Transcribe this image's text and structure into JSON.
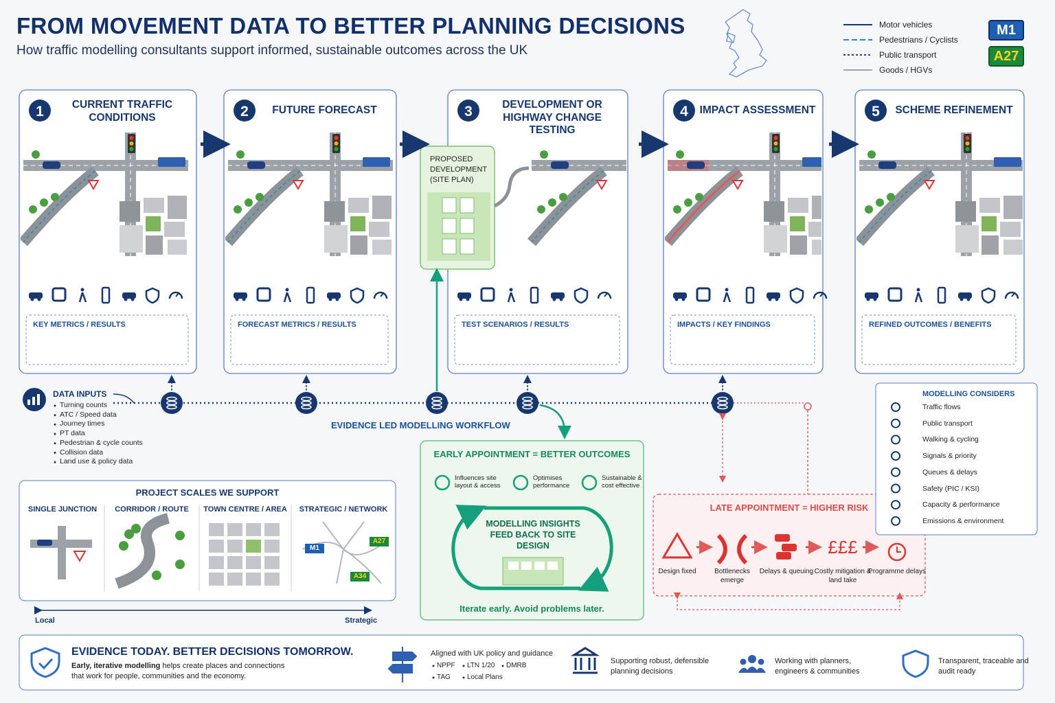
{
  "header": {
    "title": "FROM MOVEMENT DATA TO BETTER PLANNING DECISIONS",
    "subtitle": "How traffic modelling consultants support informed, sustainable outcomes across the UK"
  },
  "legend": {
    "items": [
      "Motor vehicles",
      "Pedestrians / Cyclists",
      "Public transport",
      "Goods / HGVs"
    ],
    "signs": [
      "M1",
      "A27"
    ]
  },
  "steps": [
    {
      "number": "1",
      "title": "CURRENT TRAFFIC CONDITIONS",
      "results": "KEY METRICS / RESULTS"
    },
    {
      "number": "2",
      "title": "FUTURE FORECAST",
      "results": "FORECAST METRICS / RESULTS"
    },
    {
      "number": "3",
      "title": "DEVELOPMENT OR HIGHWAY CHANGE TESTING",
      "results": "TEST SCENARIOS / RESULTS",
      "site_plan": "PROPOSED DEVELOPMENT (SITE PLAN)"
    },
    {
      "number": "4",
      "title": "IMPACT ASSESSMENT",
      "results": "IMPACTS / KEY FINDINGS"
    },
    {
      "number": "5",
      "title": "SCHEME REFINEMENT",
      "results": "REFINED OUTCOMES / BENEFITS"
    }
  ],
  "data_inputs": {
    "title": "DATA INPUTS",
    "items": [
      "Turning counts",
      "ATC / Speed data",
      "Journey times",
      "PT data",
      "Pedestrian & cycle counts",
      "Collision data",
      "Land use & policy data"
    ]
  },
  "workflow_label": "EVIDENCE LED MODELLING WORKFLOW",
  "project_scales": {
    "title": "PROJECT SCALES WE SUPPORT",
    "scales": [
      "SINGLE JUNCTION",
      "CORRIDOR / ROUTE",
      "TOWN CENTRE / AREA",
      "STRATEGIC / NETWORK"
    ],
    "signs": [
      "M1",
      "A27",
      "A34"
    ],
    "axis": [
      "Local",
      "Strategic"
    ]
  },
  "early_appointment": {
    "title": "EARLY APPOINTMENT = BETTER OUTCOMES",
    "benefits": [
      "Influences site layout & access",
      "Optimises performance",
      "Sustainable & cost effective"
    ],
    "loop_text": "MODELLING INSIGHTS FEED BACK TO SITE DESIGN",
    "tagline": "Iterate early. Avoid problems later."
  },
  "late_appointment": {
    "title": "LATE APPOINTMENT = HIGHER RISK",
    "cost_icon": "£££",
    "steps": [
      "Design fixed",
      "Bottlenecks emerge",
      "Delays & queuing",
      "Costly mitigation & land take",
      "Programme delays"
    ]
  },
  "modelling_considers": {
    "title": "MODELLING CONSIDERS",
    "items": [
      "Traffic flows",
      "Public transport",
      "Walking & cycling",
      "Signals & priority",
      "Queues & delays",
      "Safety (PIC / KSI)",
      "Capacity & performance",
      "Emissions & environment"
    ]
  },
  "footer": {
    "title": "EVIDENCE TODAY.  BETTER DECISIONS TOMORROW.",
    "text_lead": "Early, iterative modelling",
    "text": "helps create places and connections that work for people, communities and the economy.",
    "policy_title": "Aligned with UK policy and guidance",
    "policy_tags": [
      "NPPF",
      "LTN 1/20",
      "DMRB",
      "TAG",
      "Local Plans"
    ],
    "points": [
      "Supporting robust, defensible planning decisions",
      "Working with planners, engineers & communities",
      "Transparent, traceable and audit ready"
    ]
  }
}
